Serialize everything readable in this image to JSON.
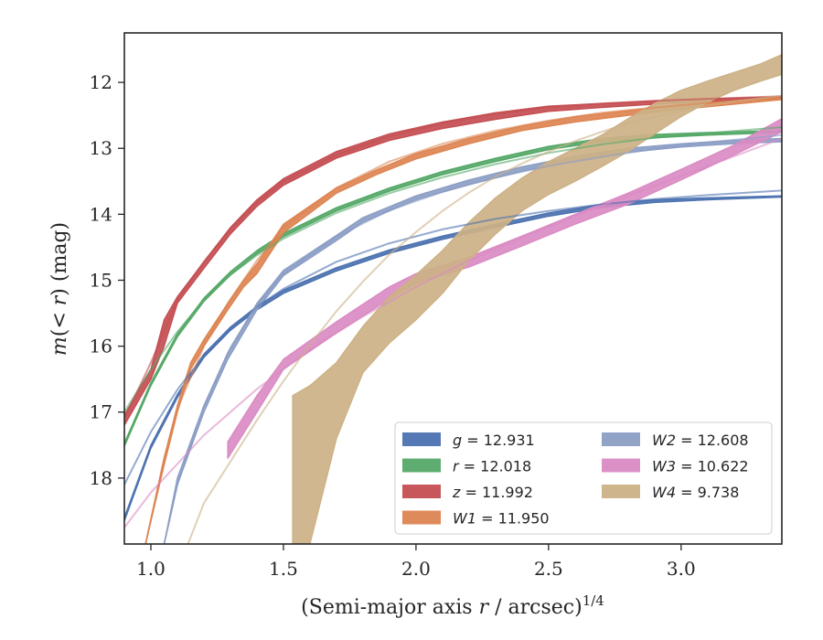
{
  "chart_data": {
    "type": "line",
    "xlabel": "(Semi-major axis r / arcsec)^{1/4}",
    "ylabel": "m(< r) (mag)",
    "xlim": [
      0.9,
      3.38
    ],
    "ylim": [
      19.0,
      11.25
    ],
    "y_inverted": true,
    "grid": false,
    "legend_position": "lower-right",
    "legend_columns": 2,
    "x_ticks": [
      1.0,
      1.5,
      2.0,
      2.5,
      3.0
    ],
    "x_tick_labels": [
      "1.0",
      "1.5",
      "2.0",
      "2.5",
      "3.0"
    ],
    "y_ticks": [
      12,
      13,
      14,
      15,
      16,
      17,
      18
    ],
    "y_tick_labels": [
      "12",
      "13",
      "14",
      "15",
      "16",
      "17",
      "18"
    ],
    "series": [
      {
        "name": "g = 12.931",
        "name_parts": [
          "g",
          " = 12.931"
        ],
        "color": "#4c72b0",
        "band_x": [
          0.9,
          1.0,
          1.1,
          1.2,
          1.3,
          1.4,
          1.5,
          1.7,
          1.9,
          2.1,
          2.3,
          2.5,
          2.7,
          2.9,
          3.1,
          3.38
        ],
        "band_lower": [
          18.65,
          17.55,
          16.78,
          16.17,
          15.76,
          15.45,
          15.2,
          14.86,
          14.59,
          14.38,
          14.2,
          14.03,
          13.9,
          13.82,
          13.78,
          13.74
        ],
        "band_upper": [
          18.6,
          17.5,
          16.73,
          16.12,
          15.71,
          15.4,
          15.15,
          14.81,
          14.54,
          14.33,
          14.15,
          13.98,
          13.85,
          13.78,
          13.75,
          13.72
        ],
        "model_x": [
          0.9,
          1.0,
          1.1,
          1.2,
          1.3,
          1.4,
          1.5,
          1.7,
          1.9,
          2.1,
          2.3,
          2.5,
          2.7,
          2.9,
          3.1,
          3.38
        ],
        "model_y": [
          18.1,
          17.3,
          16.66,
          16.14,
          15.73,
          15.4,
          15.13,
          14.72,
          14.44,
          14.23,
          14.07,
          13.95,
          13.85,
          13.77,
          13.71,
          13.64
        ]
      },
      {
        "name": "r = 12.018",
        "name_parts": [
          "r",
          " = 12.018"
        ],
        "color": "#55a868",
        "band_x": [
          0.9,
          1.0,
          1.1,
          1.2,
          1.3,
          1.4,
          1.5,
          1.7,
          1.9,
          2.1,
          2.3,
          2.5,
          2.7,
          2.9,
          3.1,
          3.38
        ],
        "band_lower": [
          17.52,
          16.6,
          15.86,
          15.32,
          14.92,
          14.6,
          14.34,
          13.95,
          13.65,
          13.4,
          13.2,
          13.02,
          12.9,
          12.84,
          12.8,
          12.76
        ],
        "band_upper": [
          17.47,
          16.55,
          15.81,
          15.27,
          14.87,
          14.55,
          14.29,
          13.9,
          13.6,
          13.35,
          13.15,
          12.97,
          12.85,
          12.79,
          12.76,
          12.73
        ],
        "model_x": [
          0.9,
          1.0,
          1.1,
          1.2,
          1.3,
          1.4,
          1.5,
          1.7,
          1.9,
          2.1,
          2.3,
          2.5,
          2.7,
          2.9,
          3.1,
          3.38
        ],
        "model_y": [
          17.0,
          16.35,
          15.78,
          15.3,
          14.92,
          14.62,
          14.37,
          13.98,
          13.68,
          13.44,
          13.24,
          13.07,
          12.94,
          12.84,
          12.77,
          12.68
        ]
      },
      {
        "name": "z = 11.992",
        "name_parts": [
          "z",
          " = 11.992"
        ],
        "color": "#c44e52",
        "band_x": [
          0.9,
          1.0,
          1.05,
          1.1,
          1.2,
          1.3,
          1.4,
          1.5,
          1.7,
          1.9,
          2.1,
          2.3,
          2.5,
          2.7,
          2.9,
          3.1,
          3.38
        ],
        "band_lower": [
          17.2,
          16.5,
          16.0,
          15.35,
          14.82,
          14.3,
          13.88,
          13.56,
          13.15,
          12.88,
          12.7,
          12.56,
          12.44,
          12.38,
          12.33,
          12.29,
          12.25
        ],
        "band_upper": [
          17.05,
          16.35,
          15.6,
          15.25,
          14.72,
          14.2,
          13.78,
          13.46,
          13.05,
          12.78,
          12.6,
          12.46,
          12.36,
          12.32,
          12.28,
          12.25,
          12.22
        ],
        "model_x": [
          0.9,
          1.0,
          1.1,
          1.2,
          1.3,
          1.4,
          1.5,
          1.7,
          1.9,
          2.1,
          2.3,
          2.5,
          2.7,
          2.9,
          3.1,
          3.38
        ],
        "model_y": [
          17.1,
          16.25,
          15.3,
          14.72,
          14.22,
          13.82,
          13.5,
          13.1,
          12.82,
          12.62,
          12.48,
          12.38,
          12.32,
          12.28,
          12.25,
          12.21
        ]
      },
      {
        "name": "W1 = 11.950",
        "name_parts": [
          "W1",
          " = 11.950"
        ],
        "color": "#dd8452",
        "band_x": [
          0.98,
          1.05,
          1.1,
          1.15,
          1.2,
          1.29,
          1.35,
          1.4,
          1.5,
          1.7,
          1.85,
          2.0,
          2.2,
          2.4,
          2.6,
          2.8,
          3.0,
          3.2,
          3.38
        ],
        "band_lower": [
          19.0,
          17.8,
          17.0,
          16.35,
          16.0,
          15.45,
          15.1,
          14.9,
          14.28,
          13.68,
          13.4,
          13.16,
          12.93,
          12.73,
          12.6,
          12.5,
          12.41,
          12.33,
          12.26
        ],
        "band_upper": [
          19.0,
          17.7,
          16.9,
          16.25,
          15.9,
          15.35,
          15.0,
          14.75,
          14.15,
          13.6,
          13.33,
          13.08,
          12.85,
          12.66,
          12.52,
          12.43,
          12.35,
          12.28,
          12.22
        ],
        "model_x": [
          0.98,
          1.05,
          1.1,
          1.2,
          1.29,
          1.4,
          1.5,
          1.7,
          1.9,
          2.1,
          2.3,
          2.5,
          2.7,
          2.9,
          3.1,
          3.38
        ],
        "model_y": [
          19.0,
          17.7,
          16.95,
          16.0,
          15.35,
          14.7,
          14.2,
          13.6,
          13.2,
          12.93,
          12.73,
          12.58,
          12.46,
          12.38,
          12.31,
          12.24
        ]
      },
      {
        "name": "W2 = 12.608",
        "name_parts": [
          "W2",
          " = 12.608"
        ],
        "color": "#8c9ec5",
        "band_x": [
          1.05,
          1.1,
          1.2,
          1.29,
          1.4,
          1.5,
          1.7,
          1.8,
          2.0,
          2.2,
          2.4,
          2.6,
          2.8,
          3.0,
          3.2,
          3.38
        ],
        "band_lower": [
          19.0,
          18.1,
          17.0,
          16.2,
          15.45,
          14.93,
          14.4,
          14.12,
          13.78,
          13.55,
          13.35,
          13.18,
          13.06,
          12.98,
          12.93,
          12.9
        ],
        "band_upper": [
          19.0,
          18.0,
          16.9,
          16.1,
          15.35,
          14.85,
          14.32,
          14.05,
          13.72,
          13.48,
          13.28,
          13.12,
          13.0,
          12.93,
          12.88,
          12.85
        ],
        "model_x": [
          1.05,
          1.1,
          1.2,
          1.3,
          1.4,
          1.5,
          1.7,
          1.9,
          2.1,
          2.3,
          2.5,
          2.7,
          2.9,
          3.1,
          3.38
        ],
        "model_y": [
          19.0,
          18.1,
          16.92,
          16.02,
          15.38,
          14.9,
          14.34,
          13.94,
          13.66,
          13.44,
          13.27,
          13.13,
          13.01,
          12.91,
          12.8
        ]
      },
      {
        "name": "W3 = 10.622",
        "name_parts": [
          "W3",
          " = 10.622"
        ],
        "color": "#da8bc3",
        "band_x": [
          1.29,
          1.4,
          1.5,
          1.7,
          1.9,
          2.0,
          2.2,
          2.4,
          2.6,
          2.8,
          3.0,
          3.2,
          3.38
        ],
        "band_lower": [
          17.7,
          17.0,
          16.35,
          15.8,
          15.28,
          15.05,
          14.8,
          14.48,
          14.15,
          13.85,
          13.48,
          13.1,
          12.75
        ],
        "band_upper": [
          17.45,
          16.75,
          16.2,
          15.63,
          15.1,
          14.9,
          14.65,
          14.33,
          14.0,
          13.68,
          13.32,
          12.95,
          12.55
        ],
        "model_x": [
          0.9,
          1.0,
          1.2,
          1.4,
          1.6,
          1.8,
          2.0,
          2.2,
          2.4,
          2.6,
          2.8,
          3.0,
          3.2,
          3.38
        ],
        "model_y": [
          18.75,
          18.22,
          17.35,
          16.65,
          16.05,
          15.55,
          15.1,
          14.7,
          14.35,
          14.02,
          13.72,
          13.42,
          13.12,
          12.85
        ]
      },
      {
        "name": "W4 = 9.738",
        "name_parts": [
          "W4",
          " = 9.738"
        ],
        "color": "#ccb185",
        "band_x": [
          1.535,
          1.6,
          1.7,
          1.8,
          1.9,
          2.0,
          2.1,
          2.2,
          2.3,
          2.4,
          2.5,
          2.6,
          2.7,
          2.8,
          2.9,
          3.0,
          3.1,
          3.2,
          3.3,
          3.38
        ],
        "band_lower": [
          19.0,
          19.0,
          17.4,
          16.4,
          15.95,
          15.6,
          15.2,
          14.7,
          14.3,
          13.95,
          13.7,
          13.5,
          13.28,
          13.05,
          12.78,
          12.52,
          12.3,
          12.12,
          11.98,
          11.88
        ],
        "band_upper": [
          16.75,
          16.6,
          16.25,
          15.7,
          15.25,
          14.92,
          14.55,
          14.12,
          13.75,
          13.45,
          13.2,
          13.0,
          12.8,
          12.55,
          12.32,
          12.12,
          11.98,
          11.85,
          11.72,
          11.58
        ],
        "model_x": [
          1.14,
          1.2,
          1.3,
          1.4,
          1.5,
          1.6,
          1.7,
          1.8,
          1.9,
          2.0,
          2.1,
          2.2,
          2.3,
          2.4,
          2.5,
          2.6,
          2.7,
          2.8,
          2.9,
          3.0,
          3.1,
          3.2,
          3.3,
          3.38
        ],
        "model_y": [
          19.0,
          18.38,
          17.75,
          17.12,
          16.53,
          15.98,
          15.47,
          15.02,
          14.61,
          14.27,
          13.95,
          13.67,
          13.43,
          13.23,
          13.05,
          12.89,
          12.75,
          12.62,
          12.52,
          12.43,
          12.35,
          12.29,
          12.24,
          12.2
        ]
      }
    ]
  }
}
